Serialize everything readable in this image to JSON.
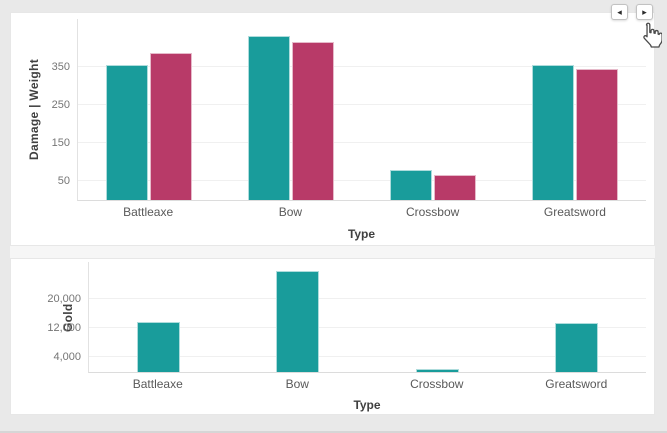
{
  "pager": {
    "prev_glyph": "◂",
    "next_glyph": "▸"
  },
  "cursor": {
    "icon": "hand-pointer"
  },
  "colors": {
    "teal": "#199c9b",
    "crimson": "#b83a68",
    "card_background": "#ffffff",
    "page_background": "#e9e9e9"
  },
  "chart_data": [
    {
      "type": "bar",
      "categories": [
        "Battleaxe",
        "Bow",
        "Crossbow",
        "Greatsword"
      ],
      "series": [
        {
          "name": "Damage",
          "color": "#199c9b",
          "values": [
            355,
            430,
            80,
            355
          ]
        },
        {
          "name": "Weight",
          "color": "#b83a68",
          "values": [
            385,
            415,
            65,
            345
          ]
        }
      ],
      "xlabel": "Type",
      "ylabel": "Damage  |  Weight",
      "yticks": [
        50,
        150,
        250,
        350
      ],
      "ytick_labels": [
        "50",
        "150",
        "250",
        "350"
      ],
      "ylim": [
        0,
        475
      ],
      "grid": true,
      "legend": "none"
    },
    {
      "type": "bar",
      "categories": [
        "Battleaxe",
        "Bow",
        "Crossbow",
        "Greatsword"
      ],
      "series": [
        {
          "name": "Gold",
          "color": "#199c9b",
          "values": [
            13700,
            27500,
            800,
            13500
          ]
        }
      ],
      "xlabel": "Type",
      "ylabel": "Gold",
      "yticks": [
        4000,
        12000,
        20000
      ],
      "ytick_labels": [
        "4,000",
        "12,000",
        "20,000"
      ],
      "ylim": [
        0,
        30000
      ],
      "grid": true,
      "legend": "none"
    }
  ]
}
